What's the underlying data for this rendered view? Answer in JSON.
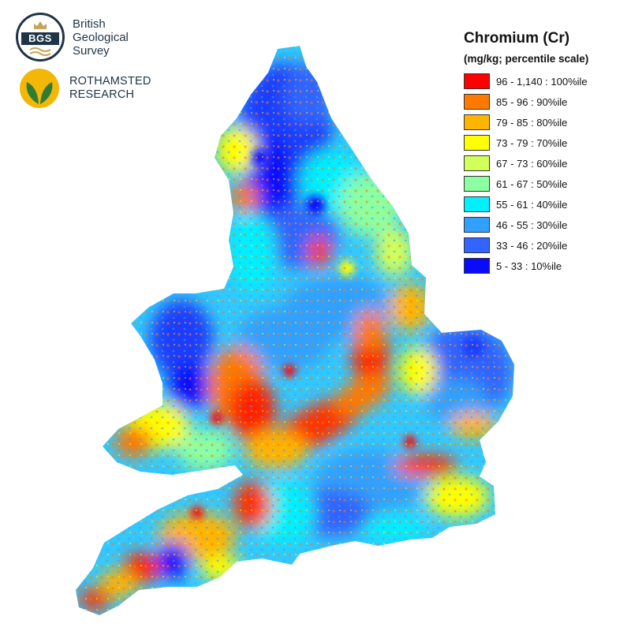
{
  "logos": {
    "bgs": {
      "badge_text": "BGS",
      "name_lines": [
        "British",
        "Geological",
        "Survey"
      ]
    },
    "rothamsted": {
      "name_lines": [
        "ROTHAMSTED",
        "RESEARCH"
      ]
    }
  },
  "legend": {
    "title": "Chromium (Cr)",
    "subtitle": "(mg/kg; percentile scale)",
    "items": [
      {
        "label": "96 - 1,140 : 100%ile",
        "color": "#ff0000"
      },
      {
        "label": "85 - 96 : 90%ile",
        "color": "#ff7800"
      },
      {
        "label": "79 - 85 : 80%ile",
        "color": "#ffb400"
      },
      {
        "label": "73 - 79 : 70%ile",
        "color": "#ffff00"
      },
      {
        "label": "67 - 73 : 60%ile",
        "color": "#d2ff5a"
      },
      {
        "label": "61 - 67 : 50%ile",
        "color": "#8cffa0"
      },
      {
        "label": "55 - 61 : 40%ile",
        "color": "#00f0ff"
      },
      {
        "label": "46 - 55 : 30%ile",
        "color": "#32a0ff"
      },
      {
        "label": "33 - 46 : 20%ile",
        "color": "#3264ff"
      },
      {
        "label": "5 - 33 : 10%ile",
        "color": "#0a0aff"
      }
    ]
  }
}
